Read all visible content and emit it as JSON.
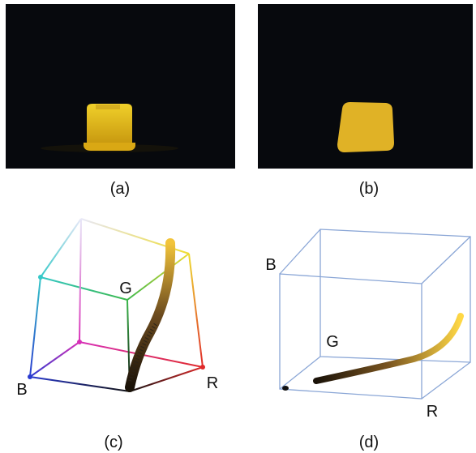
{
  "panels": [
    {
      "caption": "(a)"
    },
    {
      "caption": "(b)"
    },
    {
      "caption": "(c)",
      "axis_labels": [
        "B",
        "G",
        "R"
      ]
    },
    {
      "caption": "(d)",
      "axis_labels": [
        "B",
        "G",
        "R"
      ]
    }
  ]
}
